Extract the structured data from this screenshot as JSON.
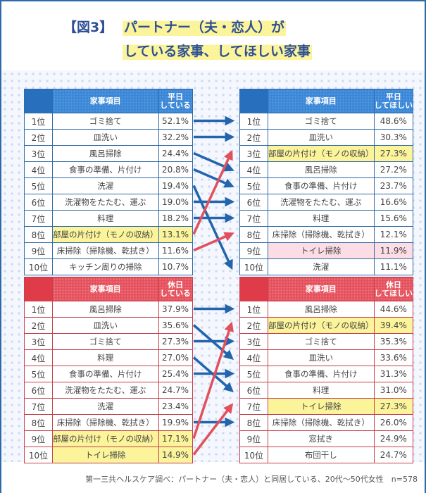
{
  "title": {
    "prefix": "【図3】",
    "line1": "パートナー（夫・恋人）が",
    "line2": "している家事、してほしい家事"
  },
  "colors": {
    "blue": "#2870be",
    "red": "#df3b49",
    "highlight_yellow": "#fbf49b",
    "highlight_pink": "#fbdde3",
    "title_text": "#2e4f95"
  },
  "tables": {
    "weekday_doing": {
      "header_item": "家事項目",
      "header_value_1": "平日",
      "header_value_2": "している",
      "rows": [
        {
          "rank": "1位",
          "item": "ゴミ捨て",
          "pct": "52.1%",
          "highlight": ""
        },
        {
          "rank": "2位",
          "item": "皿洗い",
          "pct": "32.2%",
          "highlight": ""
        },
        {
          "rank": "3位",
          "item": "風呂掃除",
          "pct": "24.4%",
          "highlight": ""
        },
        {
          "rank": "4位",
          "item": "食事の準備、片付け",
          "pct": "20.8%",
          "highlight": ""
        },
        {
          "rank": "5位",
          "item": "洗濯",
          "pct": "19.4%",
          "highlight": ""
        },
        {
          "rank": "6位",
          "item": "洗濯物をたたむ、運ぶ",
          "pct": "19.0%",
          "highlight": ""
        },
        {
          "rank": "7位",
          "item": "料理",
          "pct": "18.2%",
          "highlight": ""
        },
        {
          "rank": "8位",
          "item": "部屋の片付け（モノの収納）",
          "pct": "13.1%",
          "highlight": "yellow"
        },
        {
          "rank": "9位",
          "item": "床掃除（掃除機、乾拭き）",
          "pct": "11.6%",
          "highlight": ""
        },
        {
          "rank": "10位",
          "item": "キッチン周りの掃除",
          "pct": "10.7%",
          "highlight": ""
        }
      ]
    },
    "weekday_wanted": {
      "header_item": "家事項目",
      "header_value_1": "平日",
      "header_value_2": "してほしい",
      "rows": [
        {
          "rank": "1位",
          "item": "ゴミ捨て",
          "pct": "48.6%",
          "highlight": ""
        },
        {
          "rank": "2位",
          "item": "皿洗い",
          "pct": "30.3%",
          "highlight": ""
        },
        {
          "rank": "3位",
          "item": "部屋の片付け（モノの収納）",
          "pct": "27.3%",
          "highlight": "yellow"
        },
        {
          "rank": "4位",
          "item": "風呂掃除",
          "pct": "27.2%",
          "highlight": ""
        },
        {
          "rank": "5位",
          "item": "食事の準備、片付け",
          "pct": "23.7%",
          "highlight": ""
        },
        {
          "rank": "6位",
          "item": "洗濯物をたたむ、運ぶ",
          "pct": "16.6%",
          "highlight": ""
        },
        {
          "rank": "7位",
          "item": "料理",
          "pct": "15.6%",
          "highlight": ""
        },
        {
          "rank": "8位",
          "item": "床掃除（掃除機、乾拭き）",
          "pct": "12.1%",
          "highlight": ""
        },
        {
          "rank": "9位",
          "item": "トイレ掃除",
          "pct": "11.9%",
          "highlight": "pink"
        },
        {
          "rank": "10位",
          "item": "洗濯",
          "pct": "11.1%",
          "highlight": ""
        }
      ]
    },
    "holiday_doing": {
      "header_item": "家事項目",
      "header_value_1": "休日",
      "header_value_2": "している",
      "rows": [
        {
          "rank": "1位",
          "item": "風呂掃除",
          "pct": "37.9%",
          "highlight": ""
        },
        {
          "rank": "2位",
          "item": "皿洗い",
          "pct": "35.6%",
          "highlight": ""
        },
        {
          "rank": "3位",
          "item": "ゴミ捨て",
          "pct": "27.3%",
          "highlight": ""
        },
        {
          "rank": "4位",
          "item": "料理",
          "pct": "27.0%",
          "highlight": ""
        },
        {
          "rank": "5位",
          "item": "食事の準備、片付け",
          "pct": "25.4%",
          "highlight": ""
        },
        {
          "rank": "6位",
          "item": "洗濯物をたたむ、運ぶ",
          "pct": "24.7%",
          "highlight": ""
        },
        {
          "rank": "7位",
          "item": "洗濯",
          "pct": "23.4%",
          "highlight": ""
        },
        {
          "rank": "8位",
          "item": "床掃除（掃除機、乾拭き）",
          "pct": "19.9%",
          "highlight": ""
        },
        {
          "rank": "9位",
          "item": "部屋の片付け（モノの収納）",
          "pct": "17.1%",
          "highlight": "yellow"
        },
        {
          "rank": "10位",
          "item": "トイレ掃除",
          "pct": "14.9%",
          "highlight": "yellow"
        }
      ]
    },
    "holiday_wanted": {
      "header_item": "家事項目",
      "header_value_1": "休日",
      "header_value_2": "してほしい",
      "rows": [
        {
          "rank": "1位",
          "item": "風呂掃除",
          "pct": "44.6%",
          "highlight": ""
        },
        {
          "rank": "2位",
          "item": "部屋の片付け（モノの収納）",
          "pct": "39.4%",
          "highlight": "yellow"
        },
        {
          "rank": "3位",
          "item": "ゴミ捨て",
          "pct": "35.3%",
          "highlight": ""
        },
        {
          "rank": "4位",
          "item": "皿洗い",
          "pct": "33.6%",
          "highlight": ""
        },
        {
          "rank": "5位",
          "item": "食事の準備、片付け",
          "pct": "31.3%",
          "highlight": ""
        },
        {
          "rank": "6位",
          "item": "料理",
          "pct": "31.0%",
          "highlight": ""
        },
        {
          "rank": "7位",
          "item": "トイレ掃除",
          "pct": "27.3%",
          "highlight": "yellow"
        },
        {
          "rank": "8位",
          "item": "床掃除（掃除機、乾拭き）",
          "pct": "26.0%",
          "highlight": ""
        },
        {
          "rank": "9位",
          "item": "窓拭き",
          "pct": "24.9%",
          "highlight": ""
        },
        {
          "rank": "10位",
          "item": "布団干し",
          "pct": "24.7%",
          "highlight": ""
        }
      ]
    }
  },
  "arrows": {
    "weekday": [
      {
        "from": 1,
        "to": 1,
        "color": "blue"
      },
      {
        "from": 2,
        "to": 2,
        "color": "blue"
      },
      {
        "from": 3,
        "to": 4,
        "color": "blue"
      },
      {
        "from": 4,
        "to": 5,
        "color": "blue"
      },
      {
        "from": 5,
        "to": 10,
        "color": "blue"
      },
      {
        "from": 6,
        "to": 6,
        "color": "blue"
      },
      {
        "from": 7,
        "to": 7,
        "color": "blue"
      },
      {
        "from": 8,
        "to": 3,
        "color": "red"
      },
      {
        "from": 9,
        "to": 8,
        "color": "red"
      }
    ],
    "holiday": [
      {
        "from": 1,
        "to": 1,
        "color": "blue"
      },
      {
        "from": 2,
        "to": 4,
        "color": "blue"
      },
      {
        "from": 3,
        "to": 3,
        "color": "blue"
      },
      {
        "from": 4,
        "to": 6,
        "color": "blue"
      },
      {
        "from": 5,
        "to": 5,
        "color": "blue"
      },
      {
        "from": 8,
        "to": 8,
        "color": "blue"
      },
      {
        "from": 9,
        "to": 2,
        "color": "red"
      },
      {
        "from": 10,
        "to": 7,
        "color": "red"
      }
    ]
  },
  "footer": {
    "source": "第一三共ヘルスケア調べ：パートナー（夫・恋人）と同居している、20代〜50代女性　n=578"
  }
}
